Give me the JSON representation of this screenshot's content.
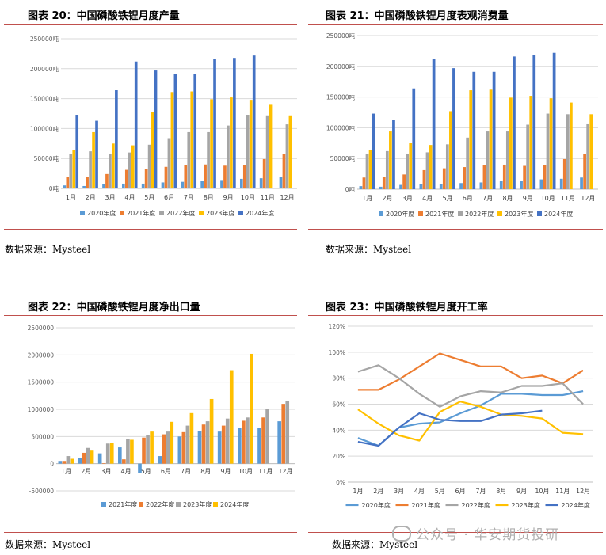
{
  "charts": {
    "c20": {
      "title": "图表 20：中国磷酸铁锂月度产量",
      "source": "数据来源：Mysteel",
      "chart_data": {
        "type": "bar",
        "categories": [
          "1月",
          "2月",
          "3月",
          "4月",
          "5月",
          "6月",
          "7月",
          "8月",
          "9月",
          "10月",
          "11月",
          "12月"
        ],
        "ylim": [
          0,
          250000
        ],
        "yticks": [
          0,
          50000,
          100000,
          150000,
          200000,
          250000
        ],
        "ytick_labels": [
          "0吨",
          "50000吨",
          "100000吨",
          "150000吨",
          "200000吨",
          "250000吨"
        ],
        "series": [
          {
            "name": "2020年度",
            "color": "#5b9bd5",
            "values": [
              5000,
              4000,
              7000,
              8000,
              8000,
              10000,
              11000,
              13000,
              14000,
              16000,
              17000,
              19000
            ]
          },
          {
            "name": "2021年度",
            "color": "#ed7d31",
            "values": [
              19000,
              19000,
              24000,
              31000,
              32000,
              36000,
              39000,
              40000,
              38000,
              39000,
              49000,
              58000
            ]
          },
          {
            "name": "2022年度",
            "color": "#a5a5a5",
            "values": [
              58000,
              62000,
              58000,
              60000,
              73000,
              84000,
              94000,
              94000,
              105000,
              123000,
              122000,
              107000
            ]
          },
          {
            "name": "2023年度",
            "color": "#ffc000",
            "values": [
              64000,
              94000,
              75000,
              72000,
              127000,
              161000,
              162000,
              149000,
              152000,
              148000,
              141000,
              122000
            ]
          },
          {
            "name": "2024年度",
            "color": "#4472c4",
            "values": [
              123000,
              113000,
              164000,
              212000,
              197000,
              191000,
              191000,
              216000,
              218000,
              222000,
              null,
              null
            ]
          }
        ]
      }
    },
    "c21": {
      "title": "图表 21：中国磷酸铁锂月度表观消费量",
      "source": "数据来源：Mysteel",
      "chart_data": {
        "type": "bar",
        "categories": [
          "1月",
          "2月",
          "3月",
          "4月",
          "5月",
          "6月",
          "7月",
          "8月",
          "9月",
          "10月",
          "11月",
          "12月"
        ],
        "ylim": [
          0,
          250000
        ],
        "yticks": [
          0,
          50000,
          100000,
          150000,
          200000,
          250000
        ],
        "ytick_labels": [
          "0吨",
          "50000吨",
          "100000吨",
          "150000吨",
          "200000吨",
          "250000吨"
        ],
        "series": [
          {
            "name": "2020年度",
            "color": "#5b9bd5",
            "values": [
              5000,
              4000,
              7000,
              8000,
              8000,
              10000,
              11000,
              13000,
              14000,
              16000,
              17000,
              19000
            ]
          },
          {
            "name": "2021年度",
            "color": "#ed7d31",
            "values": [
              19000,
              20000,
              24000,
              31000,
              34000,
              36000,
              39000,
              40000,
              38000,
              39000,
              49000,
              58000
            ]
          },
          {
            "name": "2022年度",
            "color": "#a5a5a5",
            "values": [
              58000,
              62000,
              58000,
              60000,
              73000,
              84000,
              94000,
              94000,
              105000,
              123000,
              122000,
              107000
            ]
          },
          {
            "name": "2023年度",
            "color": "#ffc000",
            "values": [
              64000,
              94000,
              75000,
              72000,
              127000,
              161000,
              162000,
              149000,
              152000,
              148000,
              141000,
              122000
            ]
          },
          {
            "name": "2024年度",
            "color": "#4472c4",
            "values": [
              123000,
              113000,
              164000,
              212000,
              197000,
              191000,
              191000,
              216000,
              218000,
              222000,
              null,
              null
            ]
          }
        ]
      }
    },
    "c22": {
      "title": "图表 22：中国磷酸铁锂月度净出口量",
      "source": "数据来源：Mysteel",
      "chart_data": {
        "type": "bar",
        "categories": [
          "1月",
          "2月",
          "3月",
          "4月",
          "5月",
          "6月",
          "7月",
          "8月",
          "9月",
          "10月",
          "11月",
          "12月"
        ],
        "ylim": [
          -500000,
          2500000
        ],
        "yticks": [
          -500000,
          0,
          500000,
          1000000,
          1500000,
          2000000,
          2500000
        ],
        "ytick_labels": [
          "-500000",
          "0",
          "500000",
          "1000000",
          "1500000",
          "2000000",
          "2500000"
        ],
        "series": [
          {
            "name": "2021年度",
            "color": "#5b9bd5",
            "values": [
              50000,
              110000,
              190000,
              300000,
              -170000,
              140000,
              500000,
              600000,
              590000,
              660000,
              660000,
              780000
            ]
          },
          {
            "name": "2022年度",
            "color": "#ed7d31",
            "values": [
              50000,
              200000,
              10000,
              80000,
              480000,
              540000,
              580000,
              720000,
              700000,
              790000,
              850000,
              1100000
            ]
          },
          {
            "name": "2023年度",
            "color": "#a5a5a5",
            "values": [
              140000,
              290000,
              370000,
              450000,
              530000,
              590000,
              700000,
              780000,
              830000,
              850000,
              1010000,
              1160000
            ]
          },
          {
            "name": "2024年度",
            "color": "#ffc000",
            "values": [
              90000,
              240000,
              380000,
              440000,
              590000,
              770000,
              930000,
              1190000,
              1720000,
              2020000,
              null,
              null
            ]
          }
        ]
      }
    },
    "c23": {
      "title": "图表 23：中国磷酸铁锂月度开工率",
      "source": "数据来源：Mysteel",
      "chart_data": {
        "type": "line",
        "categories": [
          "1月",
          "2月",
          "3月",
          "4月",
          "5月",
          "6月",
          "7月",
          "8月",
          "9月",
          "10月",
          "11月",
          "12月"
        ],
        "ylim": [
          0,
          120
        ],
        "yticks": [
          0,
          20,
          40,
          60,
          80,
          100,
          120
        ],
        "ytick_labels": [
          "0%",
          "20%",
          "40%",
          "60%",
          "80%",
          "100%",
          "120%"
        ],
        "series": [
          {
            "name": "2020年度",
            "color": "#5b9bd5",
            "values": [
              34,
              28,
              42,
              45,
              46,
              53,
              59,
              68,
              68,
              67,
              67,
              70
            ]
          },
          {
            "name": "2021年度",
            "color": "#ed7d31",
            "values": [
              71,
              71,
              79,
              89,
              99,
              94,
              89,
              89,
              80,
              82,
              76,
              86
            ]
          },
          {
            "name": "2022年度",
            "color": "#a5a5a5",
            "values": [
              85,
              90,
              80,
              68,
              58,
              66,
              70,
              69,
              74,
              74,
              76,
              60
            ]
          },
          {
            "name": "2023年度",
            "color": "#ffc000",
            "values": [
              56,
              45,
              36,
              32,
              54,
              62,
              58,
              52,
              51,
              49,
              38,
              37
            ]
          },
          {
            "name": "2024年度",
            "color": "#4472c4",
            "values": [
              31,
              28,
              42,
              53,
              48,
              47,
              47,
              52,
              53,
              55,
              null,
              null
            ]
          }
        ]
      }
    }
  },
  "watermark": "公众号 · 华安期货投研"
}
